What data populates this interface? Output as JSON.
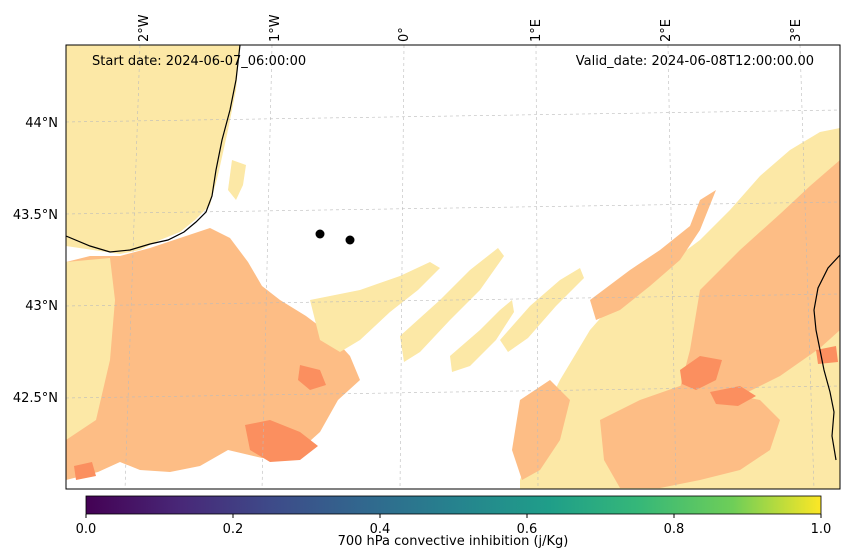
{
  "map": {
    "start_date": "Start date: 2024-06-07_06:00:00",
    "valid_date": "Valid_date: 2024-06-08T12:00:00.00",
    "lon_labels": [
      "2°W",
      "1°W",
      "0°",
      "1°E",
      "2°E",
      "3°E"
    ],
    "lat_labels": [
      "44°N",
      "43.5°N",
      "43°N",
      "42.5°N"
    ],
    "markers": [
      "location-point-1",
      "location-point-2"
    ]
  },
  "colorbar": {
    "label": "700 hPa convective inhibition (j/Kg)",
    "ticks": [
      "0.0",
      "0.2",
      "0.4",
      "0.6",
      "0.8",
      "1.0"
    ],
    "colors": [
      "#440154",
      "#3b528b",
      "#21918c",
      "#5ec962",
      "#fde725"
    ]
  },
  "fill_colors": {
    "light": "#fce8a6",
    "medium": "#fdbd85",
    "strong": "#fb8f5f"
  }
}
